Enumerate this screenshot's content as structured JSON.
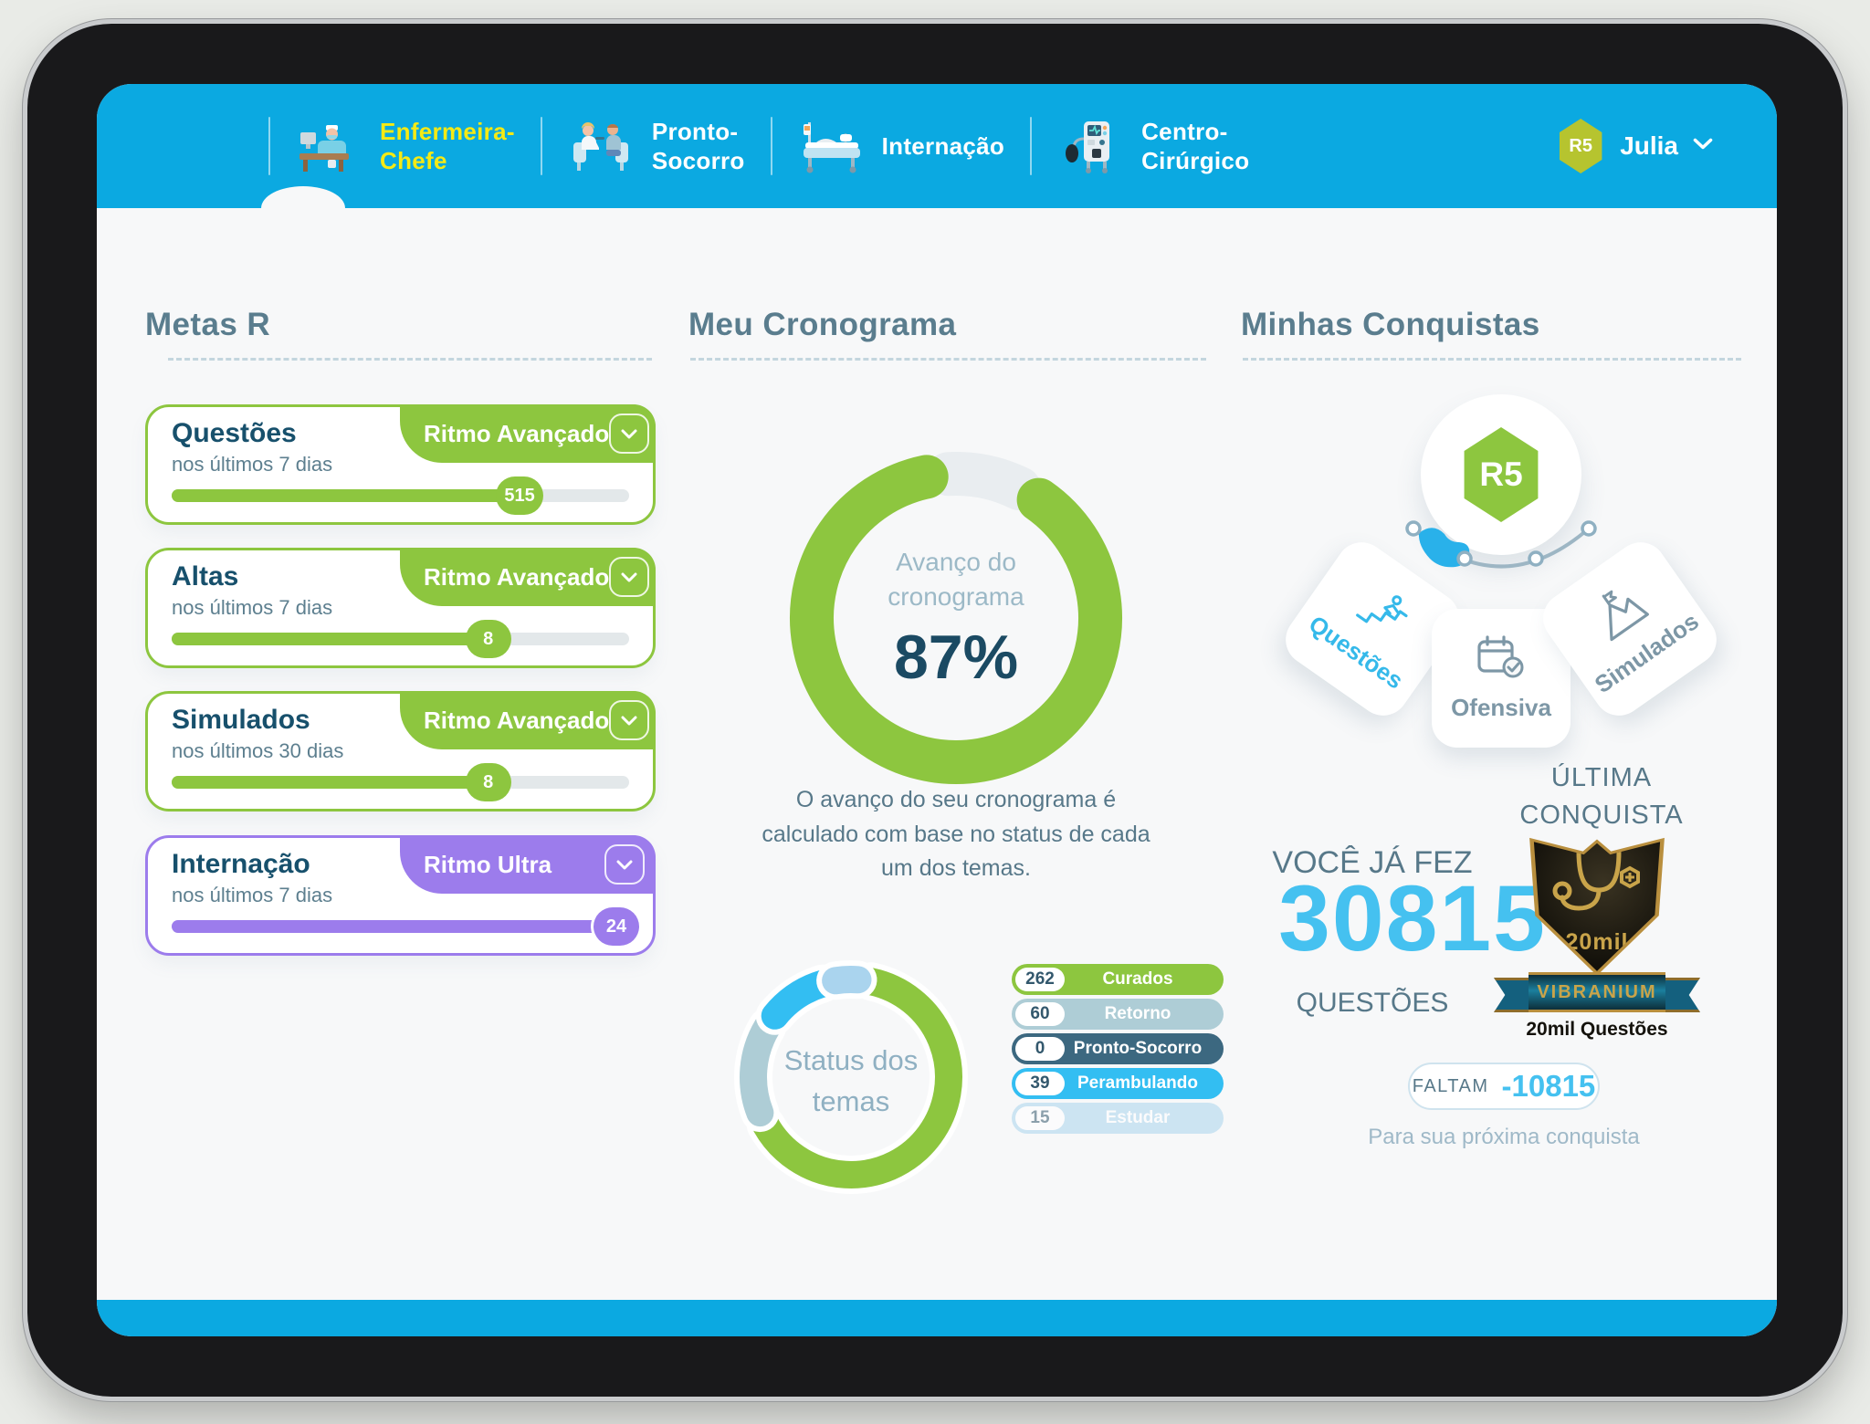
{
  "nav": {
    "items": [
      {
        "line1": "Enfermeira-",
        "line2": "Chefe",
        "active": true
      },
      {
        "line1": "Pronto-",
        "line2": "Socorro",
        "active": false
      },
      {
        "line1": "Internação",
        "line2": "",
        "active": false
      },
      {
        "line1": "Centro-",
        "line2": "Cirúrgico",
        "active": false
      }
    ],
    "user": {
      "badge": "R5",
      "name": "Julia"
    },
    "active_color": "#f5ea14",
    "bar_color": "#0ba9e1"
  },
  "metas": {
    "heading": "Metas R",
    "cards": [
      {
        "title": "Questões",
        "period": "nos últimos 7 dias",
        "pace": "Ritmo Avançado",
        "value": "515",
        "progress_pct": 76,
        "color": "#8dc63f"
      },
      {
        "title": "Altas",
        "period": "nos últimos 7 dias",
        "pace": "Ritmo Avançado",
        "value": "8",
        "progress_pct": 69,
        "color": "#8dc63f"
      },
      {
        "title": "Simulados",
        "period": "nos últimos 30 dias",
        "pace": "Ritmo Avançado",
        "value": "8",
        "progress_pct": 69,
        "color": "#8dc63f"
      },
      {
        "title": "Internação",
        "period": "nos últimos 7 dias",
        "pace": "Ritmo Ultra",
        "value": "24",
        "progress_pct": 97,
        "color": "#9c7cec"
      }
    ]
  },
  "cronograma": {
    "heading": "Meu Cronograma",
    "center_line1": "Avanço do",
    "center_line2": "cronograma",
    "percent": "87%",
    "description": "O avanço do seu cronograma é calculado com base no status de cada um dos temas.",
    "status": {
      "center_line1": "Status dos",
      "center_line2": "temas",
      "legend": [
        {
          "count": "262",
          "label": "Curados",
          "color": "#8dc63f",
          "faded": false
        },
        {
          "count": "60",
          "label": "Retorno",
          "color": "#aecdd6",
          "faded": false
        },
        {
          "count": "0",
          "label": "Pronto-Socorro",
          "color": "#3c6880",
          "faded": false
        },
        {
          "count": "39",
          "label": "Perambulando",
          "color": "#33bef2",
          "faded": false
        },
        {
          "count": "15",
          "label": "Estudar",
          "color": "#aad4ee",
          "faded": true
        }
      ]
    }
  },
  "conquistas": {
    "heading": "Minhas Conquistas",
    "level": "R5",
    "wedges": [
      {
        "label": "Questões",
        "highlight": true
      },
      {
        "label": "Ofensiva",
        "highlight": false
      },
      {
        "label": "Simulados",
        "highlight": false
      }
    ],
    "ultima_title": "ÚLTIMA CONQUISTA",
    "stats": {
      "prefix": "VOCÊ JÁ FEZ",
      "count": "30815",
      "suffix": "QUESTÕES"
    },
    "badge": {
      "tier": "20mil",
      "ribbon": "VIBRANIUM",
      "caption": "20mil Questões"
    },
    "faltam": {
      "label": "FALTAM",
      "value": "-10815",
      "caption": "Para sua próxima conquista"
    }
  },
  "chart_data": [
    {
      "type": "donut",
      "title": "Avanço do cronograma",
      "value_pct": 87,
      "color": "#8dc63f",
      "track_color": "#e9edf0",
      "center_label": "Avanço do cronograma 87%"
    },
    {
      "type": "donut",
      "title": "Status dos temas",
      "segments": [
        {
          "label": "Curados",
          "value": 262,
          "color": "#8dc63f"
        },
        {
          "label": "Retorno",
          "value": 60,
          "color": "#aecdd6"
        },
        {
          "label": "Pronto-Socorro",
          "value": 0,
          "color": "#3c6880"
        },
        {
          "label": "Perambulando",
          "value": 39,
          "color": "#33bef2"
        },
        {
          "label": "Estudar",
          "value": 15,
          "color": "#aad4ee"
        }
      ]
    }
  ]
}
